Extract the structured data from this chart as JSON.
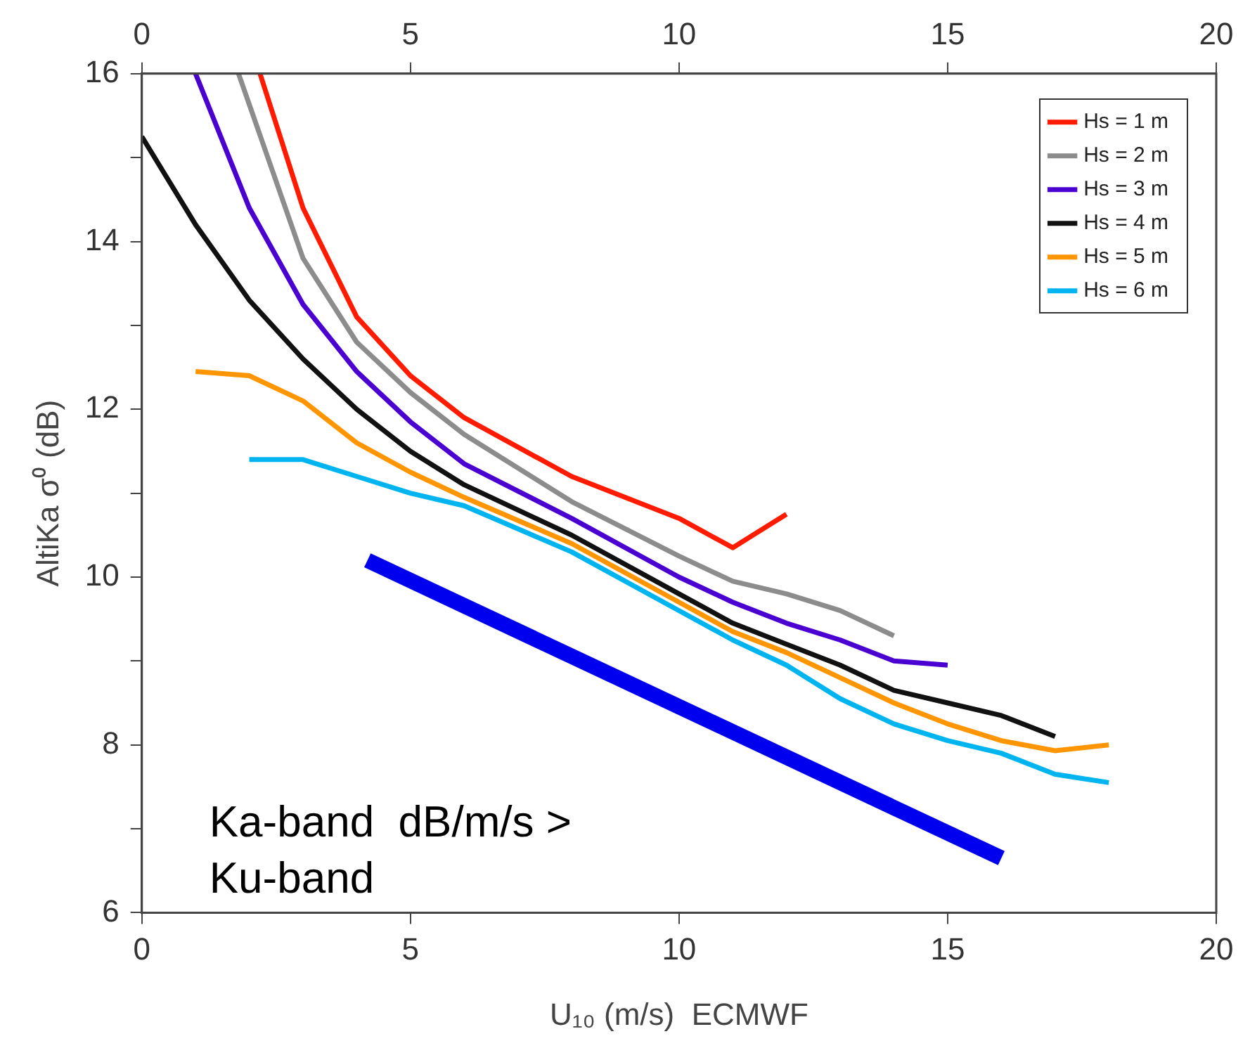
{
  "chart_data": {
    "type": "line",
    "xlabel": "U₁₀ (m/s)  ECMWF",
    "ylabel": "AltiKa σ⁰ (dB)",
    "xlim": [
      0,
      20
    ],
    "xticks": [
      0,
      5,
      10,
      15,
      20
    ],
    "x2lim": [
      0,
      20
    ],
    "x2ticks": [
      0,
      5,
      10,
      15,
      20
    ],
    "ylim": [
      6,
      16
    ],
    "yticks": [
      6,
      {
        "value": 7,
        "label": null
      },
      8,
      {
        "value": 9,
        "label": null
      },
      10,
      {
        "value": 11,
        "label": null
      },
      12,
      {
        "value": 13,
        "label": null
      },
      14,
      {
        "value": 15,
        "label": null
      },
      16
    ],
    "grid": false,
    "legend": "top right",
    "marker": "none",
    "line_style": "solid",
    "series": [
      {
        "name": "Hs = 1 m",
        "color": "#ff1a00",
        "x": [
          2.2,
          3,
          4,
          5,
          6,
          8,
          10,
          11,
          12
        ],
        "values": [
          16,
          14.4,
          13.1,
          12.4,
          11.9,
          11.2,
          10.7,
          10.35,
          10.75
        ]
      },
      {
        "name": "Hs = 2 m",
        "color": "#8c8c8c",
        "x": [
          1.8,
          3,
          4,
          5,
          6,
          8,
          10,
          11,
          12,
          13,
          14
        ],
        "values": [
          16,
          13.8,
          12.8,
          12.2,
          11.7,
          10.9,
          10.25,
          9.95,
          9.8,
          9.6,
          9.3
        ]
      },
      {
        "name": "Hs = 3 m",
        "color": "#4b00d2",
        "x": [
          1,
          2,
          3,
          4,
          5,
          6,
          8,
          10,
          11,
          12,
          13,
          14,
          15
        ],
        "values": [
          16,
          14.4,
          13.25,
          12.45,
          11.85,
          11.35,
          10.7,
          10,
          9.7,
          9.45,
          9.25,
          9,
          8.95
        ]
      },
      {
        "name": "Hs = 4 m",
        "color": "#111111",
        "x": [
          0,
          1,
          2,
          3,
          4,
          5,
          6,
          8,
          10,
          11,
          12,
          13,
          14,
          15,
          16,
          17
        ],
        "values": [
          15.25,
          14.2,
          13.3,
          12.6,
          12,
          11.5,
          11.1,
          10.5,
          9.8,
          9.45,
          9.2,
          8.95,
          8.65,
          8.5,
          8.35,
          8.1
        ]
      },
      {
        "name": "Hs = 5 m",
        "color": "#ff9500",
        "x": [
          1,
          2,
          3,
          4,
          5,
          6,
          8,
          10,
          11,
          12,
          13,
          14,
          15,
          16,
          17,
          18
        ],
        "values": [
          12.45,
          12.4,
          12.1,
          11.6,
          11.25,
          10.95,
          10.4,
          9.7,
          9.35,
          9.1,
          8.8,
          8.5,
          8.25,
          8.05,
          7.93,
          8
        ]
      },
      {
        "name": "Hs = 6 m",
        "color": "#00b4f0",
        "x": [
          2,
          3,
          4,
          5,
          6,
          8,
          10,
          11,
          12,
          13,
          14,
          15,
          16,
          17,
          18
        ],
        "values": [
          11.4,
          11.4,
          11.2,
          11,
          10.85,
          10.3,
          9.6,
          9.25,
          8.95,
          8.55,
          8.25,
          8.05,
          7.9,
          7.65,
          7.55
        ]
      },
      {
        "type": "line",
        "color": "#0000ee",
        "x": [
          4.2,
          16
        ],
        "values": [
          10.2,
          6.65
        ]
      }
    ],
    "annotations": [
      "Ka-band  dB/m/s >\nKu-band"
    ]
  }
}
